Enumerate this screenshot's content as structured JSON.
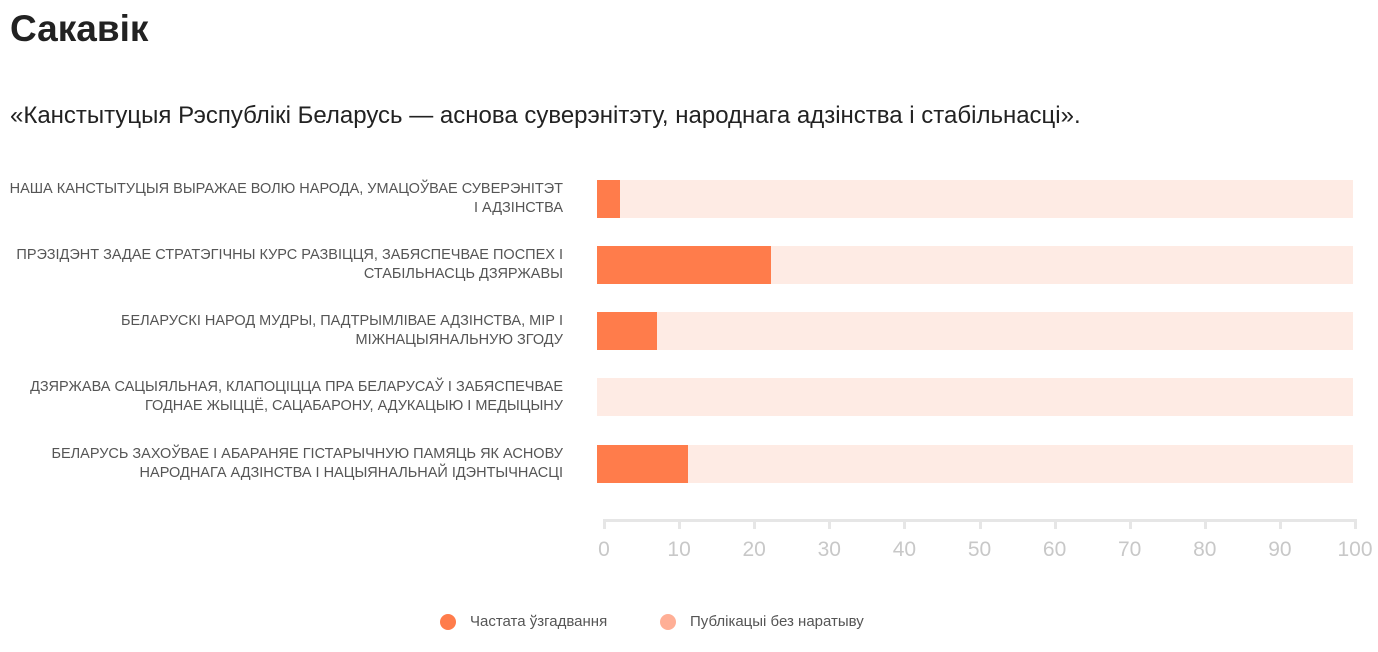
{
  "chart_data": {
    "type": "bar",
    "orientation": "horizontal",
    "stacked": true,
    "title": "Сакавік",
    "subtitle": "«Канстытуцыя Рэспублікі Беларусь — аснова суверэнітэту, народнага адзінства і стабільнасці».",
    "categories": [
      "Наша Канстытуцыя выражае волю народа, умацоўвае суверэнітэт і адзінства",
      "Прэзідэнт задае стратэгічны курс развіцця, забяспечвае поспех і стабільнасць дзяржавы",
      "Беларускі народ мудры, падтрымлівае адзінства, мір і міжнацыянальную згоду",
      "Дзяржава сацыяльная, клапоціцца пра беларусаў і забяспечвае годнае жыццё, сацабарону, адукацыю і медыцыну",
      "Беларусь захоўвае і абараняе гістарычную памяць як аснову народнага адзінства і нацыянальнай ідэнтычнасці"
    ],
    "series": [
      {
        "name": "Частата ўзгадвання",
        "color": "#ff7c4b",
        "values": [
          3,
          23,
          8,
          0,
          12
        ]
      },
      {
        "name": "Публікацыі без наратыву",
        "color": "#ffaf96",
        "bg_color": "#feebe4",
        "values": [
          97,
          77,
          92,
          100,
          88
        ]
      }
    ],
    "xlim": [
      0,
      100
    ],
    "xticks": [
      "0",
      "10",
      "20",
      "30",
      "40",
      "50",
      "60",
      "70",
      "80",
      "90",
      "100"
    ],
    "legend_position": "bottom"
  }
}
